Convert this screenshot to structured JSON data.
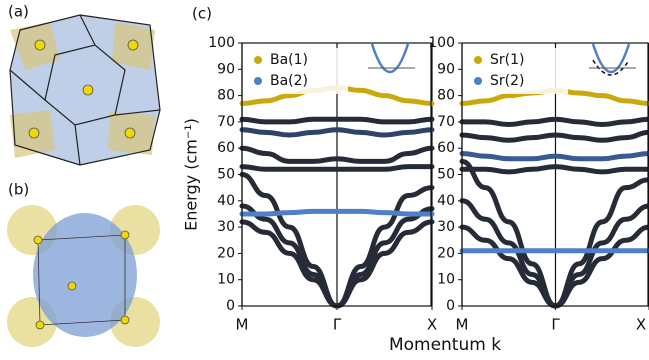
{
  "panel_labels": [
    "(a)",
    "(b)",
    "(c)"
  ],
  "chart_data": [
    {
      "type": "line",
      "ylabel": "Energy (cm⁻¹)",
      "xlabel": "Momentum k",
      "x": [
        0,
        0.25,
        0.5,
        0.75,
        1,
        1.25,
        1.5,
        1.75,
        2
      ],
      "xlim": [
        0,
        2
      ],
      "xticks": [
        {
          "value": 0,
          "label": "M"
        },
        {
          "value": 1,
          "label": "Γ"
        },
        {
          "value": 2,
          "label": "X"
        }
      ],
      "ylim": [
        0,
        100
      ],
      "yticks": [
        0,
        10,
        20,
        30,
        40,
        50,
        60,
        70,
        80,
        90,
        100
      ],
      "series": [
        {
          "name": "Ba(1)",
          "color": "#c9a90c",
          "values": [
            77,
            78,
            80,
            82,
            83,
            82,
            80,
            78,
            77
          ]
        },
        {
          "name": "Ba(2)",
          "color": "#4f7fc6",
          "values": [
            35,
            35,
            35.5,
            36,
            36,
            36,
            35.5,
            35,
            35
          ]
        }
      ],
      "bands": [
        {
          "color": "#262b38",
          "values": [
            32,
            28,
            20,
            10,
            0,
            10,
            20,
            28,
            32
          ]
        },
        {
          "color": "#262b38",
          "values": [
            38,
            33,
            24,
            12,
            0,
            12,
            24,
            33,
            37
          ]
        },
        {
          "color": "#262b38",
          "values": [
            50,
            42,
            30,
            15,
            0,
            15,
            30,
            42,
            45
          ]
        },
        {
          "color": "#262b38",
          "values": [
            53,
            52,
            52,
            52,
            52,
            52,
            52,
            53,
            53
          ]
        },
        {
          "color": "#262b38",
          "values": [
            60,
            58,
            55,
            55,
            56,
            55,
            55,
            58,
            60
          ]
        },
        {
          "color": "#2f4268",
          "values": [
            67,
            66,
            65,
            66,
            67,
            66,
            65,
            66,
            67
          ]
        },
        {
          "color": "#262b38",
          "values": [
            71,
            70,
            70,
            71,
            71,
            71,
            70,
            70,
            71
          ]
        }
      ]
    },
    {
      "type": "line",
      "x": [
        0,
        0.25,
        0.5,
        0.75,
        1,
        1.25,
        1.5,
        1.75,
        2
      ],
      "xlim": [
        0,
        2
      ],
      "xticks": [
        {
          "value": 0,
          "label": "M"
        },
        {
          "value": 1,
          "label": "Γ"
        },
        {
          "value": 2,
          "label": "X"
        }
      ],
      "ylim": [
        0,
        100
      ],
      "yticks": [
        0,
        10,
        20,
        30,
        40,
        50,
        60,
        70,
        80,
        90,
        100
      ],
      "series": [
        {
          "name": "Sr(1)",
          "color": "#c9a90c",
          "values": [
            77,
            78,
            80,
            81,
            82,
            81,
            80,
            78,
            77
          ]
        },
        {
          "name": "Sr(2)",
          "color": "#4f7fc6",
          "values": [
            21,
            21,
            21,
            21,
            21,
            21,
            21,
            21,
            21
          ]
        }
      ],
      "bands": [
        {
          "color": "#262b38",
          "values": [
            30,
            25,
            18,
            9,
            0,
            9,
            18,
            25,
            30
          ]
        },
        {
          "color": "#262b38",
          "values": [
            40,
            33,
            24,
            12,
            0,
            12,
            24,
            33,
            38
          ]
        },
        {
          "color": "#262b38",
          "values": [
            55,
            45,
            32,
            16,
            0,
            16,
            32,
            45,
            48
          ]
        },
        {
          "color": "#262b38",
          "values": [
            52,
            52,
            51,
            52,
            53,
            52,
            51,
            52,
            52
          ]
        },
        {
          "color": "#3a5a96",
          "values": [
            58,
            57,
            56,
            56,
            57,
            56,
            56,
            57,
            58
          ]
        },
        {
          "color": "#262b38",
          "values": [
            65,
            64,
            63,
            64,
            65,
            64,
            63,
            64,
            66
          ]
        },
        {
          "color": "#262b38",
          "values": [
            70,
            70,
            69,
            70,
            71,
            70,
            69,
            70,
            71
          ]
        }
      ]
    }
  ]
}
